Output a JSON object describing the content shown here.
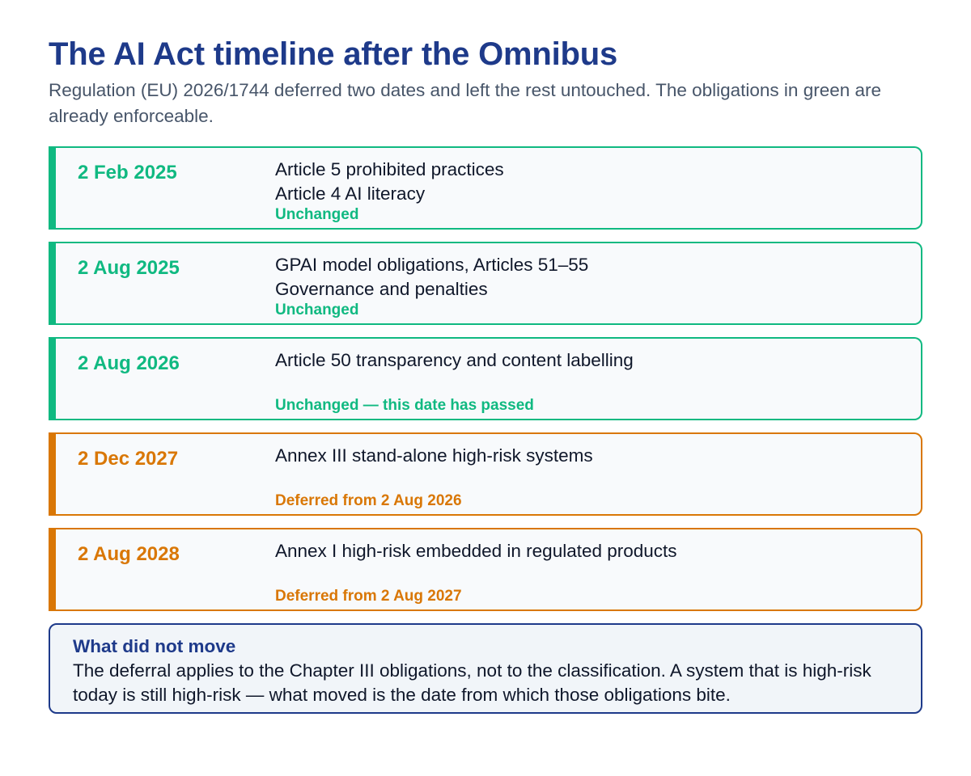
{
  "header": {
    "title": "The AI Act timeline after the Omnibus",
    "subtitle": "Regulation (EU) 2026/1744 deferred two dates and left the rest untouched. The obligations in green are already enforceable."
  },
  "colors": {
    "unchanged": "#10b981",
    "deferred": "#d97706",
    "title": "#1e3a8a"
  },
  "timeline": [
    {
      "date": "2 Feb 2025",
      "items": [
        "Article 5 prohibited practices",
        "Article 4 AI literacy"
      ],
      "status": "Unchanged",
      "kind": "unchanged"
    },
    {
      "date": "2 Aug 2025",
      "items": [
        "GPAI model obligations, Articles 51–55",
        "Governance and penalties"
      ],
      "status": "Unchanged",
      "kind": "unchanged"
    },
    {
      "date": "2 Aug 2026",
      "items": [
        "Article 50 transparency and content labelling"
      ],
      "status": "Unchanged — this date has passed",
      "kind": "unchanged"
    },
    {
      "date": "2 Dec 2027",
      "items": [
        "Annex III stand-alone high-risk systems"
      ],
      "status": "Deferred from 2 Aug 2026",
      "kind": "deferred"
    },
    {
      "date": "2 Aug 2028",
      "items": [
        "Annex I high-risk embedded in regulated products"
      ],
      "status": "Deferred from 2 Aug 2027",
      "kind": "deferred"
    }
  ],
  "note": {
    "title": "What did not move",
    "text": "The deferral applies to the Chapter III obligations, not to the classification. A system that is high-risk today is still high-risk — what moved is the date from which those obligations bite."
  }
}
